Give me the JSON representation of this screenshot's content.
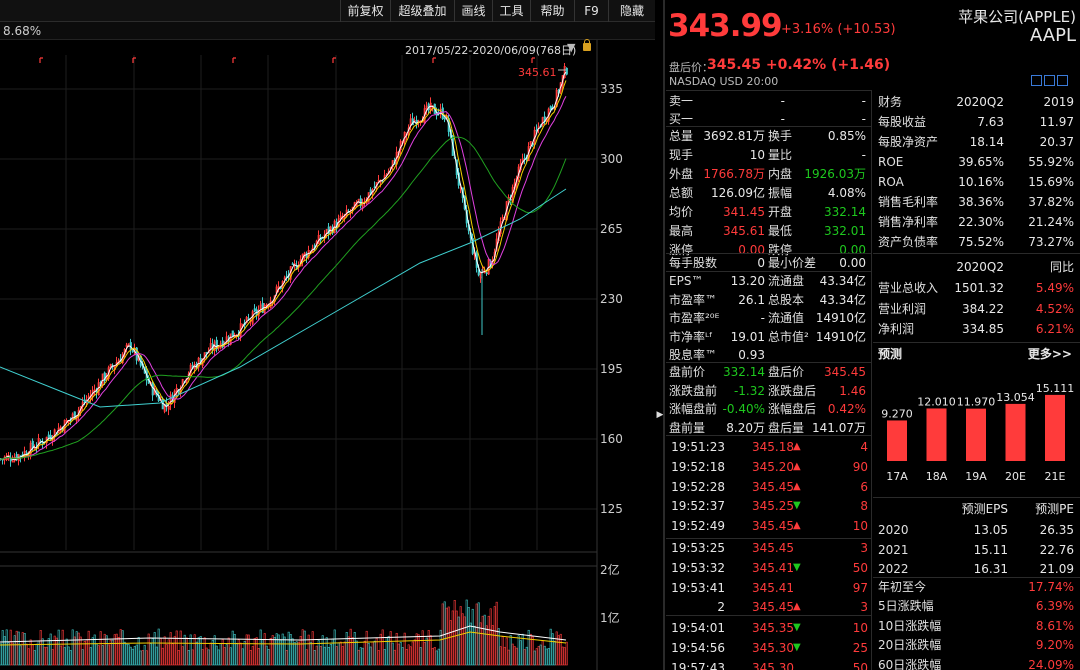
{
  "toolbar": [
    "前复权",
    "超级叠加",
    "画线",
    "工具",
    "帮助",
    "F9",
    "隐藏"
  ],
  "chart": {
    "pct_label": "8.68%",
    "date_range": "2017/05/22-2020/06/09(768日)",
    "high_marker": "345.61",
    "y_ticks": [
      "335",
      "300",
      "265",
      "230",
      "195",
      "160",
      "125"
    ],
    "vol_ticks": [
      "2亿",
      "1亿"
    ]
  },
  "header": {
    "price": "343.99",
    "change": "+3.16% (+10.53)",
    "company": "苹果公司(APPLE)",
    "ticker": "AAPL",
    "afterhours_label": "盘后价：",
    "afterhours": "345.45 +0.42% (+1.46)",
    "market": "NASDAQ  USD  20:00"
  },
  "order_book": [
    {
      "label": "卖一",
      "price": "-",
      "vol": "-"
    },
    {
      "label": "买一",
      "price": "-",
      "vol": "-"
    }
  ],
  "stats": [
    [
      "总量",
      "3692.81万",
      "white",
      "换手",
      "0.85%",
      "white"
    ],
    [
      "现手",
      "10",
      "white",
      "量比",
      "-",
      "white"
    ],
    [
      "外盘",
      "1766.78万",
      "red",
      "内盘",
      "1926.03万",
      "green"
    ],
    [
      "总额",
      "126.09亿",
      "white",
      "振幅",
      "4.08%",
      "white"
    ],
    [
      "均价",
      "341.45",
      "red",
      "开盘",
      "332.14",
      "green"
    ],
    [
      "最高",
      "345.61",
      "red",
      "最低",
      "332.01",
      "green"
    ],
    [
      "涨停",
      "0.00",
      "red",
      "跌停",
      "0.00",
      "green"
    ]
  ],
  "stats2": [
    [
      "每手股数",
      "0",
      "white",
      "最小价差",
      "0.00",
      "white"
    ]
  ],
  "stats3": [
    [
      "EPS™",
      "13.20",
      "white",
      "流通盘",
      "43.34亿",
      "white"
    ],
    [
      "市盈率™",
      "26.1",
      "white",
      "总股本",
      "43.34亿",
      "white"
    ],
    [
      "市盈率²⁰ᴱ",
      "-",
      "white",
      "流通值",
      "14910亿",
      "white"
    ],
    [
      "市净率ᴸᶠ",
      "19.01",
      "white",
      "总市值²",
      "14910亿",
      "white"
    ],
    [
      "股息率™",
      "0.93",
      "white",
      "",
      "",
      "white"
    ]
  ],
  "stats4": [
    [
      "盘前价",
      "332.14",
      "green",
      "盘后价",
      "345.45",
      "red"
    ],
    [
      "涨跌盘前",
      "-1.32",
      "green",
      "涨跌盘后",
      "1.46",
      "red"
    ],
    [
      "涨幅盘前",
      "-0.40%",
      "green",
      "涨幅盘后",
      "0.42%",
      "red"
    ],
    [
      "盘前量",
      "8.20万",
      "white",
      "盘后量",
      "141.07万",
      "white"
    ]
  ],
  "ticks": [
    {
      "time": "19:51:23",
      "price": "345.18",
      "dir": "up",
      "vol": "4",
      "vcolor": "red"
    },
    {
      "time": "19:52:18",
      "price": "345.20",
      "dir": "up",
      "vol": "90",
      "vcolor": "red"
    },
    {
      "time": "19:52:28",
      "price": "345.45",
      "dir": "up",
      "vol": "6",
      "vcolor": "red"
    },
    {
      "time": "19:52:37",
      "price": "345.25",
      "dir": "dn",
      "vol": "8",
      "vcolor": "red"
    },
    {
      "time": "19:52:49",
      "price": "345.45",
      "dir": "up",
      "vol": "10",
      "vcolor": "red"
    },
    {
      "time": "19:53:25",
      "price": "345.45",
      "dir": "",
      "vol": "3",
      "vcolor": "red"
    },
    {
      "time": "19:53:32",
      "price": "345.41",
      "dir": "dn",
      "vol": "50",
      "vcolor": "red"
    },
    {
      "time": "19:53:41",
      "price": "345.41",
      "dir": "",
      "vol": "97",
      "vcolor": "red"
    },
    {
      "time": "2",
      "price": "345.45",
      "dir": "up",
      "vol": "3",
      "vcolor": "red"
    },
    {
      "time": "19:54:01",
      "price": "345.35",
      "dir": "dn",
      "vol": "10",
      "vcolor": "red"
    },
    {
      "time": "19:54:56",
      "price": "345.30",
      "dir": "dn",
      "vol": "25",
      "vcolor": "red"
    },
    {
      "time": "19:57:43",
      "price": "345.30",
      "dir": "",
      "vol": "50",
      "vcolor": "red"
    }
  ],
  "finance": {
    "headers": [
      "财务",
      "2020Q2",
      "2019"
    ],
    "rows": [
      [
        "每股收益",
        "7.63",
        "11.97"
      ],
      [
        "每股净资产",
        "18.14",
        "20.37"
      ],
      [
        "ROE",
        "39.65%",
        "55.92%"
      ],
      [
        "ROA",
        "10.16%",
        "15.69%"
      ],
      [
        "销售毛利率",
        "38.36%",
        "37.82%"
      ],
      [
        "销售净利率",
        "22.30%",
        "21.24%"
      ],
      [
        "资产负债率",
        "75.52%",
        "73.27%"
      ]
    ],
    "headers2": [
      "",
      "2020Q2",
      "同比"
    ],
    "rows2": [
      [
        "营业总收入",
        "1501.32",
        "5.49%"
      ],
      [
        "营业利润",
        "384.22",
        "4.52%"
      ],
      [
        "净利润",
        "334.85",
        "6.21%"
      ]
    ]
  },
  "forecast": {
    "title": "预测",
    "more": "更多>>",
    "bars": [
      {
        "label": "17A",
        "value": 9.27,
        "text": "9.270"
      },
      {
        "label": "18A",
        "value": 12.01,
        "text": "12.010"
      },
      {
        "label": "19A",
        "value": 11.97,
        "text": "11.970"
      },
      {
        "label": "20E",
        "value": 13.054,
        "text": "13.054"
      },
      {
        "label": "21E",
        "value": 15.111,
        "text": "15.111"
      }
    ],
    "table_headers": [
      "",
      "预测EPS",
      "预测PE"
    ],
    "table_rows": [
      [
        "2020",
        "13.05",
        "26.35"
      ],
      [
        "2021",
        "15.11",
        "22.76"
      ],
      [
        "2022",
        "16.31",
        "21.09"
      ]
    ],
    "perf": [
      [
        "年初至今",
        "17.74%"
      ],
      [
        "5日涨跌幅",
        "6.39%"
      ],
      [
        "10日涨跌幅",
        "8.61%"
      ],
      [
        "20日涨跌幅",
        "9.20%"
      ],
      [
        "60日涨跌幅",
        "24.09%"
      ]
    ]
  },
  "colors": {
    "up": "#ff3b3b",
    "down": "#1ec81e",
    "ma5": "#ffffff",
    "ma10": "#f5d000",
    "ma20": "#e040e0",
    "ma60": "#20a020",
    "ma120": "#40d0d0"
  }
}
